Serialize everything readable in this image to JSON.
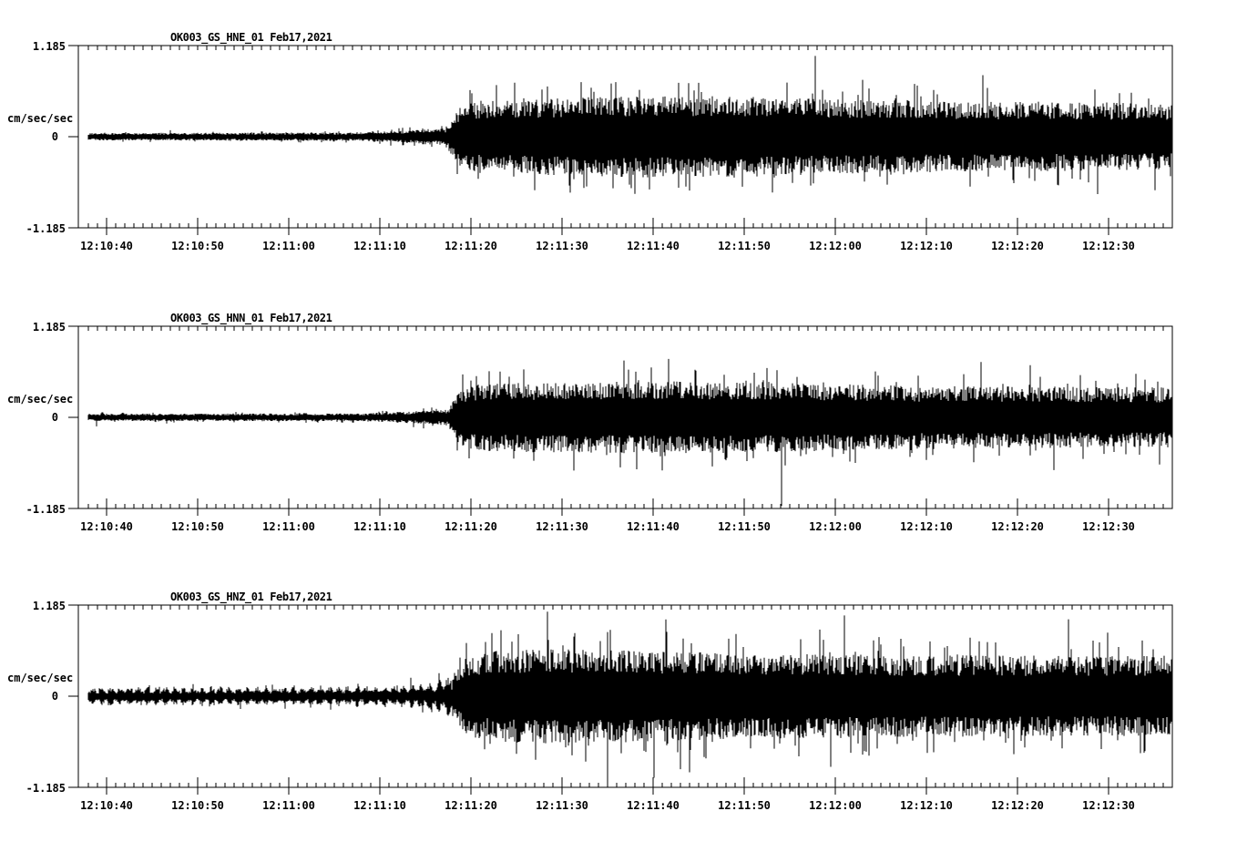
{
  "page": {
    "background": "#ffffff",
    "trace_color": "#000000",
    "description": "Three-channel strong-motion seismogram record section"
  },
  "chart_data": [
    {
      "type": "line",
      "subtype": "seismogram",
      "title": "OK003_GS_HNE_01  Feb17,2021",
      "station": "OK003",
      "network": "GS",
      "channel": "HNE",
      "date": "Feb17,2021",
      "ylabel": "cm/sec/sec",
      "yticks": [
        "1.185",
        "0",
        "-1.185"
      ],
      "ylim": [
        -1.185,
        1.185
      ],
      "xtick_labels": [
        "12:10:40",
        "12:10:50",
        "12:11:00",
        "12:11:10",
        "12:11:20",
        "12:11:30",
        "12:11:40",
        "12:11:50",
        "12:12:00",
        "12:12:10",
        "12:12:20",
        "12:12:30"
      ],
      "xtick_interval_sec": 10,
      "minor_tick_sec": 1,
      "duration_sec": 119,
      "grid": false,
      "legend": false,
      "trace_color": "#000000",
      "noise_character": "uniform",
      "onset_sec": 41,
      "envelope": {
        "t": [
          0,
          30,
          36,
          39.5,
          40.8,
          43,
          48,
          60,
          70,
          80,
          90,
          100,
          110,
          119
        ],
        "amp": [
          0.047,
          0.055,
          0.09,
          0.115,
          0.41,
          0.47,
          0.49,
          0.53,
          0.53,
          0.49,
          0.47,
          0.45,
          0.45,
          0.42
        ]
      },
      "notable_spikes": [
        [
          59.6,
          -0.67
        ],
        [
          66.0,
          -0.7
        ],
        [
          67.0,
          0.7
        ],
        [
          85.0,
          0.74
        ],
        [
          98.2,
          0.8
        ]
      ]
    },
    {
      "type": "line",
      "subtype": "seismogram",
      "title": "OK003_GS_HNN_01  Feb17,2021",
      "station": "OK003",
      "network": "GS",
      "channel": "HNN",
      "date": "Feb17,2021",
      "ylabel": "cm/sec/sec",
      "yticks": [
        "1.185",
        "0",
        "-1.185"
      ],
      "ylim": [
        -1.185,
        1.185
      ],
      "xtick_labels": [
        "12:10:40",
        "12:10:50",
        "12:11:00",
        "12:11:10",
        "12:11:20",
        "12:11:30",
        "12:11:40",
        "12:11:50",
        "12:12:00",
        "12:12:10",
        "12:12:20",
        "12:12:30"
      ],
      "xtick_interval_sec": 10,
      "minor_tick_sec": 1,
      "duration_sec": 119,
      "grid": false,
      "legend": false,
      "trace_color": "#000000",
      "noise_character": "uniform",
      "onset_sec": 41,
      "envelope": {
        "t": [
          0,
          30,
          36,
          39.5,
          40.8,
          43,
          50,
          60,
          75,
          90,
          105,
          119
        ],
        "amp": [
          0.047,
          0.05,
          0.08,
          0.105,
          0.38,
          0.44,
          0.46,
          0.47,
          0.46,
          0.41,
          0.4,
          0.39
        ]
      },
      "notable_spikes": [
        [
          44.0,
          0.6
        ],
        [
          58.8,
          0.74
        ],
        [
          63.0,
          -0.69
        ],
        [
          98.0,
          0.72
        ]
      ]
    },
    {
      "type": "line",
      "subtype": "seismogram",
      "title": "OK003_GS_HNZ_01  Feb17,2021",
      "station": "OK003",
      "network": "GS",
      "channel": "HNZ",
      "date": "Feb17,2021",
      "ylabel": "cm/sec/sec",
      "yticks": [
        "1.185",
        "0",
        "-1.185"
      ],
      "ylim": [
        -1.185,
        1.185
      ],
      "xtick_labels": [
        "12:10:40",
        "12:10:50",
        "12:11:00",
        "12:11:10",
        "12:11:20",
        "12:11:30",
        "12:11:40",
        "12:11:50",
        "12:12:00",
        "12:12:10",
        "12:12:20",
        "12:12:30"
      ],
      "xtick_interval_sec": 10,
      "minor_tick_sec": 1,
      "duration_sec": 119,
      "grid": false,
      "legend": false,
      "trace_color": "#000000",
      "noise_character": "periodic-bursts-1hz",
      "onset_sec": 41.5,
      "envelope": {
        "t": [
          0,
          28,
          33,
          36,
          38,
          40,
          41.5,
          45,
          50,
          60,
          70,
          80,
          90,
          100,
          110,
          119
        ],
        "amp": [
          0.125,
          0.13,
          0.14,
          0.16,
          0.21,
          0.28,
          0.53,
          0.59,
          0.62,
          0.6,
          0.56,
          0.55,
          0.53,
          0.53,
          0.52,
          0.53
        ]
      },
      "notable_spikes": [
        [
          50.4,
          1.1
        ],
        [
          57.0,
          -1.185
        ],
        [
          62.1,
          -1.06
        ],
        [
          66.0,
          -0.99
        ],
        [
          83.0,
          1.05
        ],
        [
          107.6,
          1.0
        ]
      ]
    }
  ]
}
